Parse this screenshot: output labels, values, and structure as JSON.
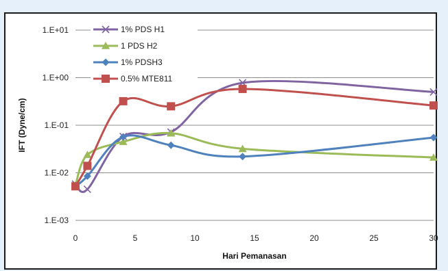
{
  "chart_data": {
    "type": "line",
    "title": "",
    "xlabel": "Hari Pemanasan",
    "ylabel": "IFT (Dyne/cm)",
    "xlim": [
      0,
      30
    ],
    "ylim": [
      0.001,
      10
    ],
    "yscale": "log",
    "x_ticks": [
      0,
      5,
      10,
      15,
      20,
      25,
      30
    ],
    "x_tick_labels": [
      "0",
      "5",
      "10",
      "15",
      "20",
      "25",
      "30"
    ],
    "y_ticks": [
      0.001,
      0.01,
      0.1,
      1,
      10
    ],
    "y_tick_labels": [
      "1.E-03",
      "1.E-02",
      "1.E-01",
      "1.E+00",
      "1.E+01"
    ],
    "grid": "horizontal",
    "legend_position": "top-left",
    "series": [
      {
        "name": "1% PDS H1",
        "color": "#8064a2",
        "marker": "x",
        "x": [
          0,
          1,
          4,
          8,
          14,
          30
        ],
        "y": [
          0.0058,
          0.0045,
          0.058,
          0.072,
          0.78,
          0.5
        ]
      },
      {
        "name": "1 PDS H2",
        "color": "#9bbb59",
        "marker": "triangle",
        "x": [
          0,
          1,
          4,
          8,
          14,
          30
        ],
        "y": [
          0.0055,
          0.024,
          0.045,
          0.068,
          0.032,
          0.021
        ]
      },
      {
        "name": "1% PDSH3",
        "color": "#4f81bd",
        "marker": "diamond",
        "x": [
          0,
          1,
          4,
          8,
          14,
          30
        ],
        "y": [
          0.0052,
          0.0085,
          0.057,
          0.038,
          0.022,
          0.055
        ]
      },
      {
        "name": "0.5% MTE811",
        "color": "#c0504d",
        "marker": "square",
        "x": [
          0,
          1,
          4,
          8,
          14,
          30
        ],
        "y": [
          0.0052,
          0.014,
          0.32,
          0.25,
          0.58,
          0.26
        ]
      }
    ]
  }
}
